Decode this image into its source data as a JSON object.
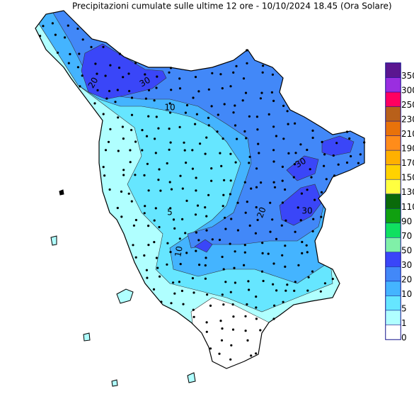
{
  "title": "Precipitazioni cumulate sulle ultime 12 ore - 10/10/2024 18.45 (Ora Solare)",
  "legend": {
    "levels": [
      350,
      300,
      250,
      230,
      210,
      190,
      170,
      150,
      130,
      110,
      90,
      70,
      50,
      30,
      20,
      10,
      5,
      1,
      0
    ],
    "colors": [
      "#5b1690",
      "#9a2ee0",
      "#ff0060",
      "#b8601a",
      "#e8720a",
      "#ff8c1a",
      "#ffb000",
      "#ffd200",
      "#ffff40",
      "#0a6a0a",
      "#10a010",
      "#10e060",
      "#80f0a8",
      "#3a46f8",
      "#4288f8",
      "#44b4ff",
      "#66e6ff",
      "#b0ffff",
      "#ffffff"
    ]
  },
  "contour_labels": [
    20,
    30,
    10,
    20,
    30,
    30,
    10,
    5
  ]
}
